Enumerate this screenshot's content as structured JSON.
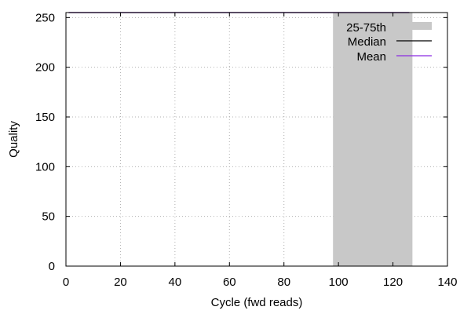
{
  "chart_data": {
    "type": "line",
    "title": "",
    "xlabel": "Cycle (fwd reads)",
    "ylabel": "Quality",
    "xlim": [
      0,
      140
    ],
    "ylim": [
      0,
      255
    ],
    "xticks": [
      0,
      20,
      40,
      60,
      80,
      100,
      120,
      140
    ],
    "yticks": [
      0,
      50,
      100,
      150,
      200,
      250
    ],
    "grid": true,
    "legend_position": "top-right",
    "series": [
      {
        "name": "25-75th",
        "kind": "band",
        "color": "#c8c8c8",
        "x": [
          98,
          99,
          100,
          101,
          102,
          103,
          104,
          105,
          106,
          107,
          108,
          109,
          110,
          111,
          112,
          113,
          114,
          115,
          116,
          117,
          118,
          119,
          120,
          121,
          122,
          123,
          124,
          125,
          126
        ],
        "low": [
          0,
          0,
          0,
          0,
          0,
          0,
          0,
          0,
          0,
          0,
          0,
          0,
          0,
          0,
          0,
          0,
          0,
          0,
          0,
          0,
          0,
          0,
          0,
          0,
          0,
          0,
          0,
          0,
          0
        ],
        "high": [
          255,
          255,
          255,
          255,
          255,
          255,
          255,
          255,
          255,
          255,
          255,
          255,
          255,
          255,
          255,
          255,
          255,
          255,
          255,
          255,
          255,
          255,
          255,
          255,
          255,
          255,
          255,
          255,
          255
        ]
      },
      {
        "name": "Median",
        "kind": "line",
        "color": "#000000",
        "x": [
          1,
          126
        ],
        "y": [
          255,
          255
        ]
      },
      {
        "name": "Mean",
        "kind": "line",
        "color": "#8a2be2",
        "x": [
          1,
          126
        ],
        "y": [
          255,
          255
        ]
      }
    ]
  }
}
